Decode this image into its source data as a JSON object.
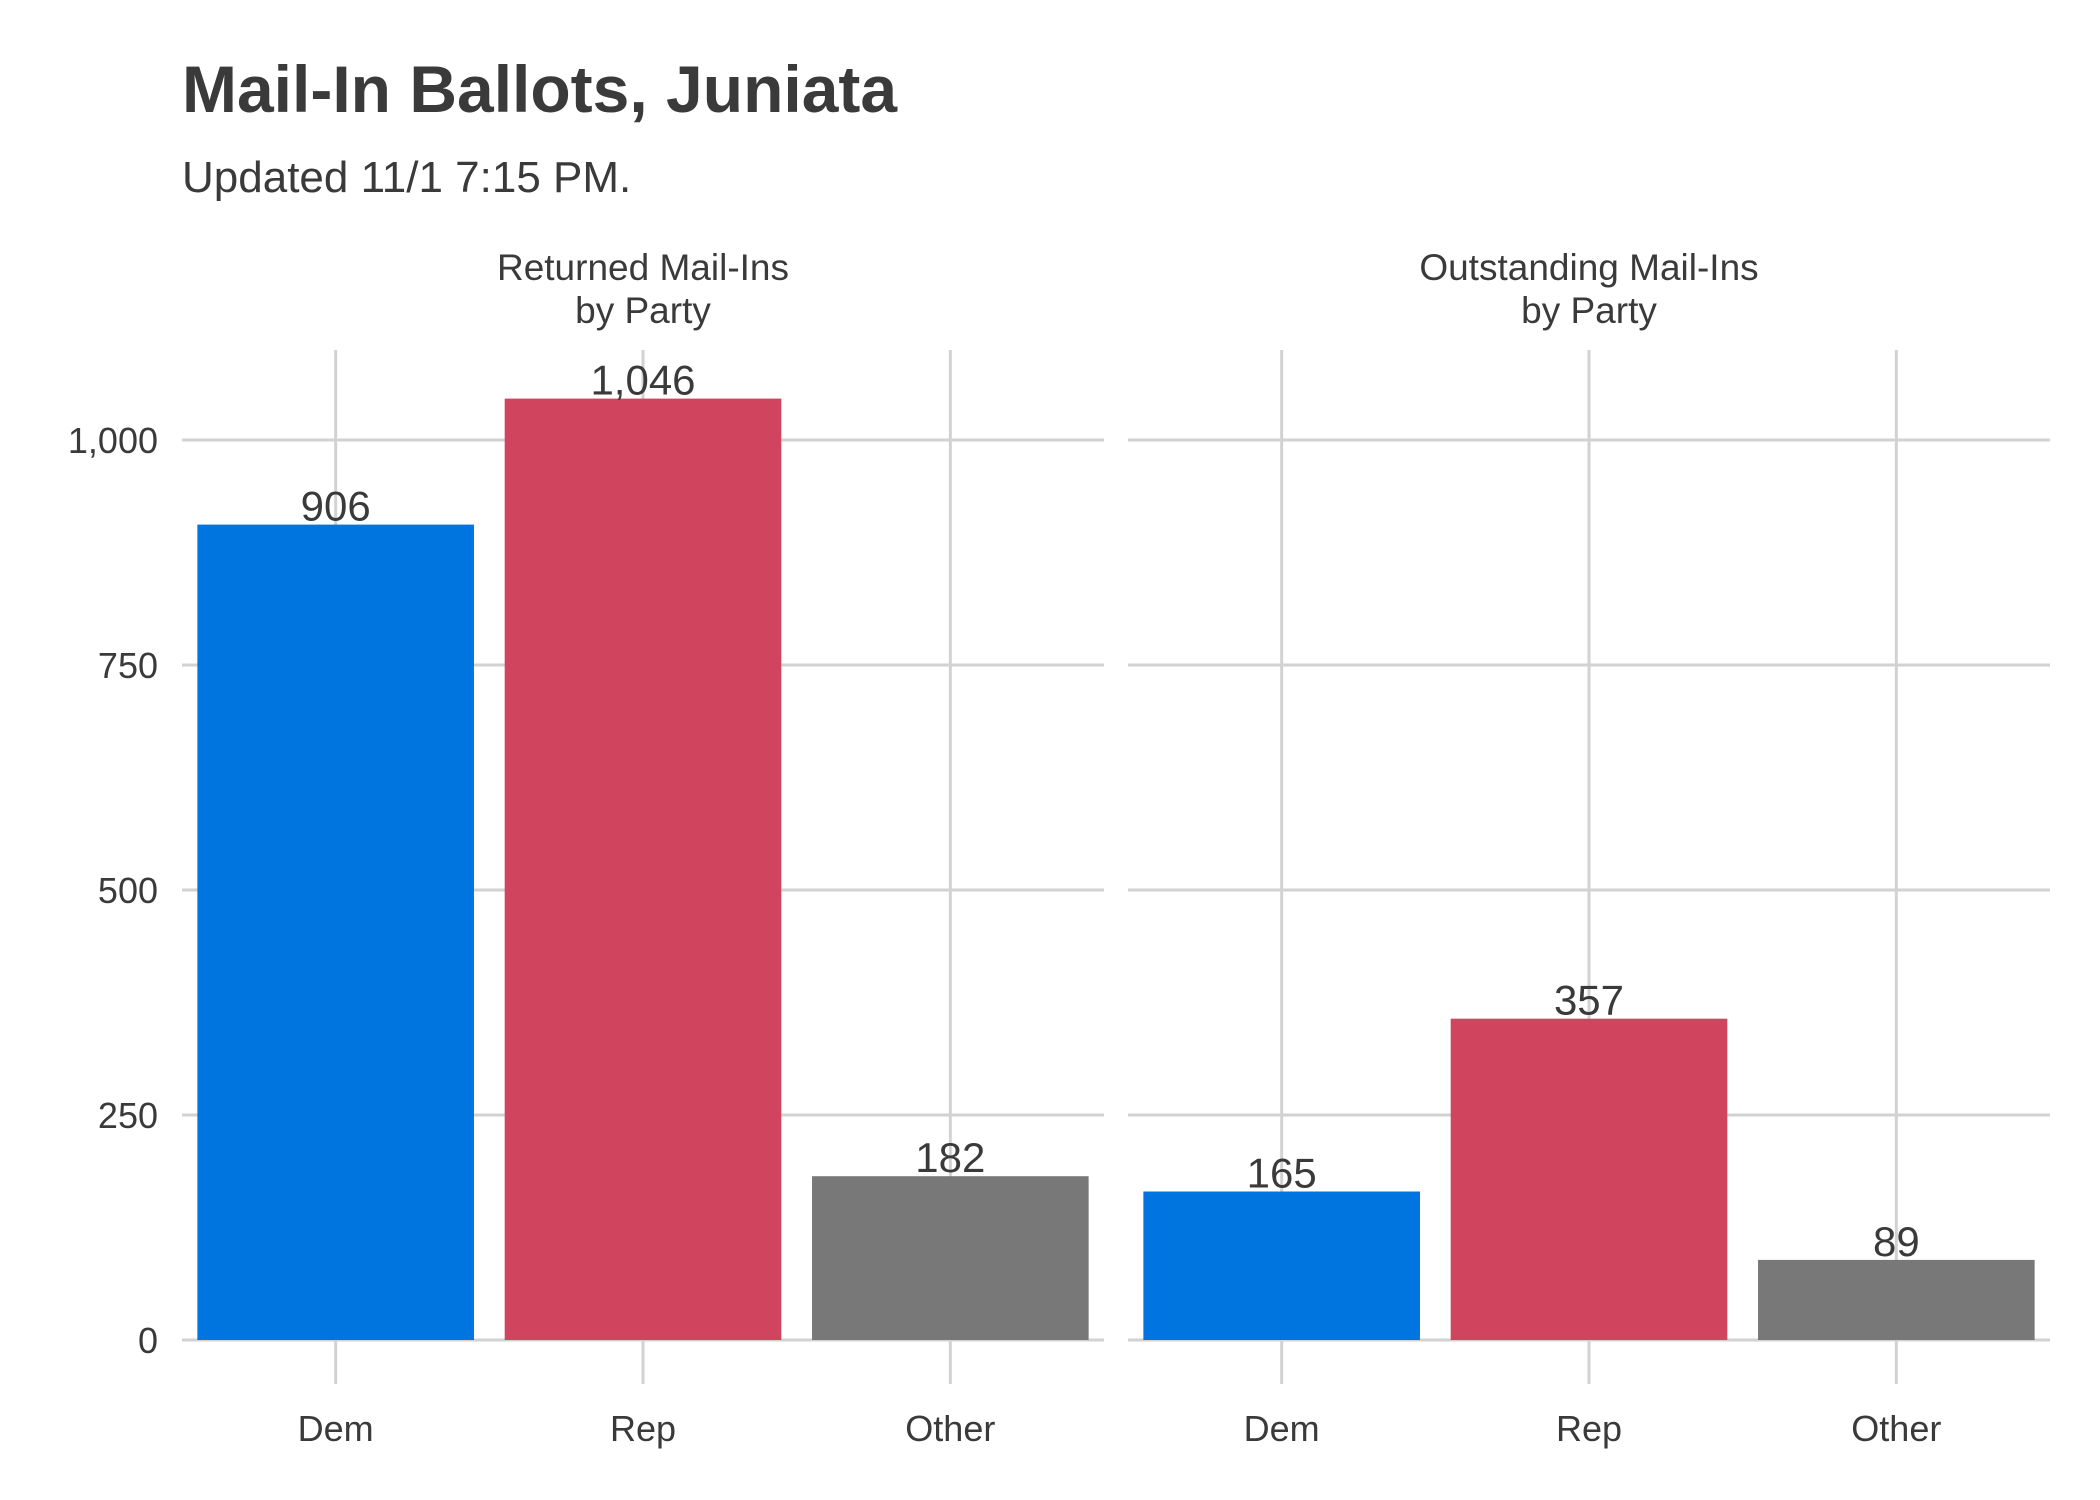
{
  "chart_data": {
    "type": "bar",
    "title": "Mail-In Ballots, Juniata",
    "subtitle": "Updated 11/1 7:15 PM.",
    "categories": [
      "Dem",
      "Rep",
      "Other"
    ],
    "category_colors": [
      "#0074df",
      "#d0445e",
      "#787878"
    ],
    "ylim": [
      0,
      1100
    ],
    "yticks": [
      0,
      250,
      500,
      750,
      1000
    ],
    "ytick_labels": [
      "0",
      "250",
      "500",
      "750",
      "1,000"
    ],
    "grid": true,
    "panels": [
      {
        "strip_label": [
          "Returned Mail-Ins",
          "by Party"
        ],
        "values": [
          906,
          1046,
          182
        ],
        "value_labels": [
          "906",
          "1,046",
          "182"
        ]
      },
      {
        "strip_label": [
          "Outstanding Mail-Ins",
          "by Party"
        ],
        "values": [
          165,
          357,
          89
        ],
        "value_labels": [
          "165",
          "357",
          "89"
        ]
      }
    ]
  }
}
